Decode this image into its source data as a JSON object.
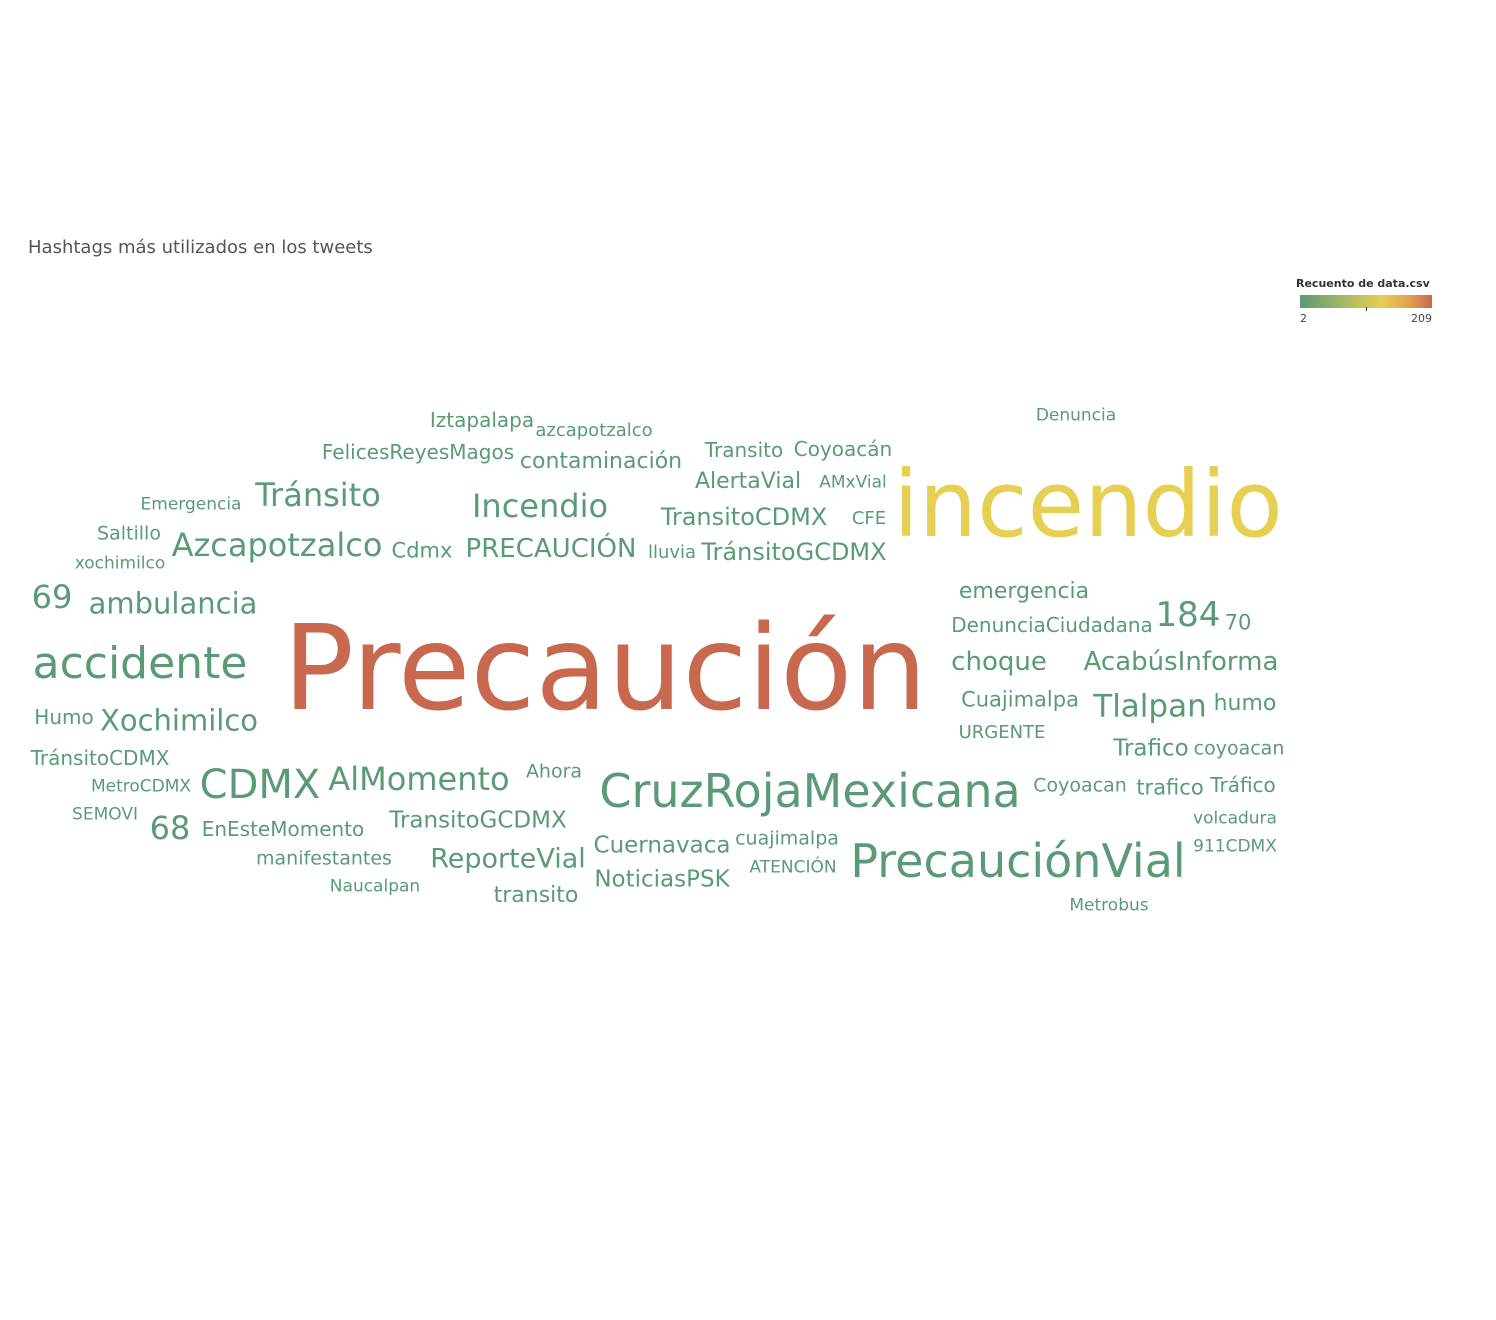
{
  "chart_data": {
    "type": "wordcloud",
    "title": "Hashtags más utilizados en los tweets",
    "legend": {
      "title": "Recuento de data.csv",
      "min": 2,
      "max": 209,
      "min_label": "2",
      "max_label": "209",
      "colors": [
        "#5a9a77",
        "#e7cf52",
        "#c8684e"
      ]
    },
    "words": [
      {
        "text": "Precaución",
        "count": 209
      },
      {
        "text": "incendio",
        "count": 130
      },
      {
        "text": "PrecauciónVial",
        "count": 24
      },
      {
        "text": "CruzRojaMexicana",
        "count": 24
      },
      {
        "text": "accidente",
        "count": 22
      },
      {
        "text": "CDMX",
        "count": 20
      },
      {
        "text": "Incendio",
        "count": 15
      },
      {
        "text": "Tránsito",
        "count": 14
      },
      {
        "text": "Azcapotzalco",
        "count": 14
      },
      {
        "text": "AlMomento",
        "count": 14
      },
      {
        "text": "ambulancia",
        "count": 13
      },
      {
        "text": "Xochimilco",
        "count": 13
      },
      {
        "text": "Tlalpan",
        "count": 13
      },
      {
        "text": "184",
        "count": 14
      },
      {
        "text": "69",
        "count": 13
      },
      {
        "text": "68",
        "count": 13
      },
      {
        "text": "ReporteVial",
        "count": 11
      },
      {
        "text": "PRECAUCIÓN",
        "count": 11
      },
      {
        "text": "AcabúsInforma",
        "count": 11
      },
      {
        "text": "TransitoCDMX",
        "count": 10
      },
      {
        "text": "TránsitoGCDMX",
        "count": 10
      },
      {
        "text": "choque",
        "count": 10
      },
      {
        "text": "contaminación",
        "count": 9
      },
      {
        "text": "AlertaVial",
        "count": 9
      },
      {
        "text": "TransitoGCDMX",
        "count": 9
      },
      {
        "text": "emergencia",
        "count": 9
      },
      {
        "text": "Cuernavaca",
        "count": 9
      },
      {
        "text": "NoticiasPSK",
        "count": 9
      },
      {
        "text": "Trafico",
        "count": 9
      },
      {
        "text": "humo",
        "count": 8
      },
      {
        "text": "Cuajimalpa",
        "count": 8
      },
      {
        "text": "transito",
        "count": 8
      },
      {
        "text": "trafico",
        "count": 8
      },
      {
        "text": "Transito",
        "count": 7
      },
      {
        "text": "Coyoacán",
        "count": 7
      },
      {
        "text": "FelicesReyesMagos",
        "count": 7
      },
      {
        "text": "Iztapalapa",
        "count": 7
      },
      {
        "text": "Cdmx",
        "count": 7
      },
      {
        "text": "DenunciaCiudadana",
        "count": 7
      },
      {
        "text": "70",
        "count": 7
      },
      {
        "text": "Humo",
        "count": 7
      },
      {
        "text": "TránsitoCDMX",
        "count": 7
      },
      {
        "text": "EnEsteMomento",
        "count": 7
      },
      {
        "text": "manifestantes",
        "count": 7
      },
      {
        "text": "Saltillo",
        "count": 7
      },
      {
        "text": "CFE",
        "count": 6
      },
      {
        "text": "Ahora",
        "count": 6
      },
      {
        "text": "Coyoacan",
        "count": 6
      },
      {
        "text": "Tráfico",
        "count": 6
      },
      {
        "text": "coyoacan",
        "count": 6
      },
      {
        "text": "URGENTE",
        "count": 6
      },
      {
        "text": "cuajimalpa",
        "count": 6
      },
      {
        "text": "azcapotzalco",
        "count": 5
      },
      {
        "text": "Denuncia",
        "count": 5
      },
      {
        "text": "Emergencia",
        "count": 5
      },
      {
        "text": "xochimilco",
        "count": 5
      },
      {
        "text": "lluvia",
        "count": 5
      },
      {
        "text": "AMxVial",
        "count": 5
      },
      {
        "text": "MetroCDMX",
        "count": 5
      },
      {
        "text": "SEMOVI",
        "count": 5
      },
      {
        "text": "Naucalpan",
        "count": 5
      },
      {
        "text": "ATENCIÓN",
        "count": 5
      },
      {
        "text": "volcadura",
        "count": 5
      },
      {
        "text": "911CDMX",
        "count": 5
      },
      {
        "text": "Metrobus",
        "count": 5
      }
    ]
  }
}
